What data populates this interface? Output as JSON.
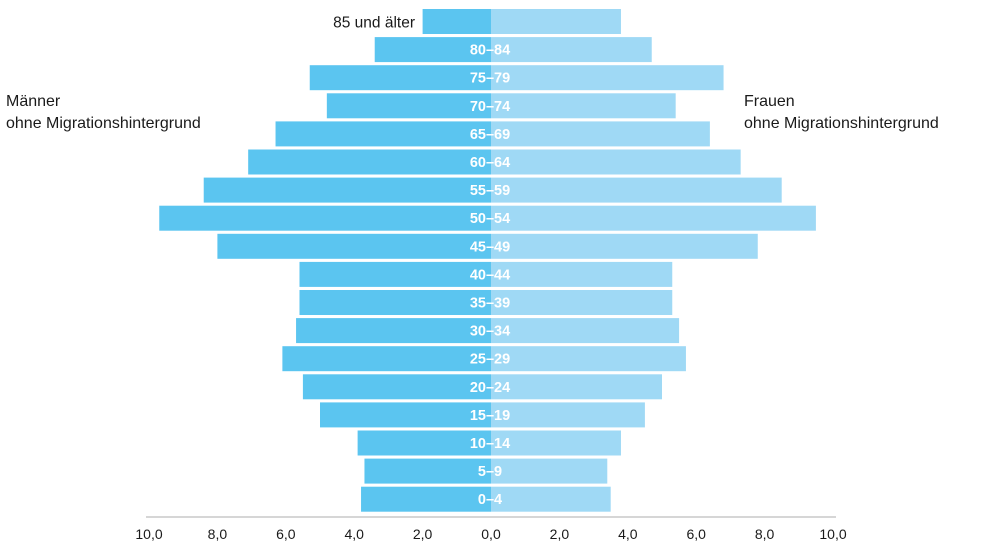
{
  "labels": {
    "left": [
      "Männer",
      "ohne Migrationshintergrund"
    ],
    "right": [
      "Frauen",
      "ohne Migrationshintergrund"
    ]
  },
  "colors": {
    "male": "#5bc5f0",
    "female": "#9fd9f5",
    "axis": "#c8c8c8",
    "text": "#1a1a1a"
  },
  "chart_data": {
    "type": "bar",
    "orientation": "horizontal-pyramid",
    "categories": [
      "85 und älter",
      "80–84",
      "75–79",
      "70–74",
      "65–69",
      "60–64",
      "55–59",
      "50–54",
      "45–49",
      "40–44",
      "35–39",
      "30–34",
      "25–29",
      "20–24",
      "15–19",
      "10–14",
      "5–9",
      "0–4"
    ],
    "series": [
      {
        "name": "Männer ohne Migrationshintergrund",
        "side": "left",
        "values": [
          2.0,
          3.4,
          5.3,
          4.8,
          6.3,
          7.1,
          8.4,
          9.7,
          8.0,
          5.6,
          5.6,
          5.7,
          6.1,
          5.5,
          5.0,
          3.9,
          3.7,
          3.8
        ]
      },
      {
        "name": "Frauen ohne Migrationshintergrund",
        "side": "right",
        "values": [
          3.8,
          4.7,
          6.8,
          5.4,
          6.4,
          7.3,
          8.5,
          9.5,
          7.8,
          5.3,
          5.3,
          5.5,
          5.7,
          5.0,
          4.5,
          3.8,
          3.4,
          3.5
        ]
      }
    ],
    "xticks": [
      "10,0",
      "8,0",
      "6,0",
      "4,0",
      "2,0",
      "0,0",
      "2,0",
      "4,0",
      "6,0",
      "8,0",
      "10,0"
    ],
    "xlim": [
      -10,
      10
    ]
  }
}
